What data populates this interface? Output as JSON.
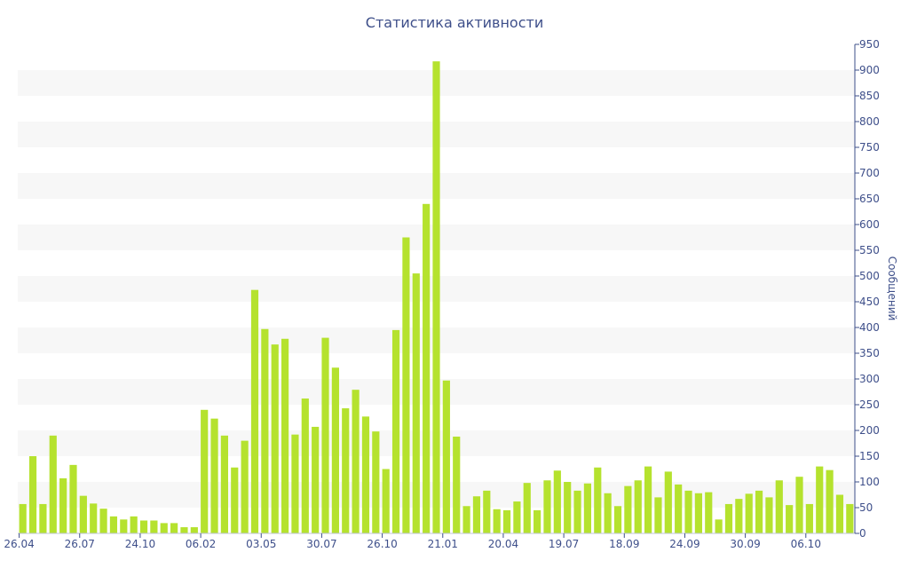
{
  "chart_data": {
    "type": "bar",
    "title": "Статистика активности",
    "xlabel": "",
    "ylabel": "Сообщений",
    "ylim": [
      0,
      950
    ],
    "y_ticks": [
      0,
      50,
      100,
      150,
      200,
      250,
      300,
      350,
      400,
      450,
      500,
      550,
      600,
      650,
      700,
      750,
      800,
      850,
      900,
      950
    ],
    "y_axis_position": "right",
    "grid": "alternating horizontal bands",
    "legend": "none",
    "bar_color": "#b5e22e",
    "text_color": "#3e4f8a",
    "band_color": "#f7f7f7",
    "x_tick_labels": [
      {
        "index": 0,
        "label": "26.04"
      },
      {
        "index": 6,
        "label": "26.07"
      },
      {
        "index": 12,
        "label": "24.10"
      },
      {
        "index": 18,
        "label": "06.02"
      },
      {
        "index": 24,
        "label": "03.05"
      },
      {
        "index": 30,
        "label": "30.07"
      },
      {
        "index": 36,
        "label": "26.10"
      },
      {
        "index": 42,
        "label": "21.01"
      },
      {
        "index": 48,
        "label": "20.04"
      },
      {
        "index": 54,
        "label": "19.07"
      },
      {
        "index": 60,
        "label": "18.09"
      },
      {
        "index": 66,
        "label": "24.09"
      },
      {
        "index": 72,
        "label": "30.09"
      },
      {
        "index": 78,
        "label": "06.10"
      }
    ],
    "values": [
      57,
      150,
      57,
      190,
      107,
      133,
      73,
      58,
      48,
      33,
      27,
      33,
      25,
      25,
      20,
      20,
      12,
      12,
      240,
      223,
      190,
      128,
      180,
      473,
      397,
      367,
      378,
      192,
      262,
      207,
      380,
      322,
      243,
      279,
      227,
      198,
      125,
      395,
      575,
      505,
      640,
      917,
      297,
      188,
      53,
      72,
      83,
      47,
      45,
      62,
      98,
      45,
      103,
      122,
      100,
      83,
      97,
      128,
      78,
      53,
      92,
      103,
      130,
      70,
      120,
      95,
      83,
      78,
      80,
      27,
      57,
      67,
      77,
      83,
      70,
      103,
      55,
      110,
      57,
      130,
      123,
      75,
      57
    ]
  }
}
